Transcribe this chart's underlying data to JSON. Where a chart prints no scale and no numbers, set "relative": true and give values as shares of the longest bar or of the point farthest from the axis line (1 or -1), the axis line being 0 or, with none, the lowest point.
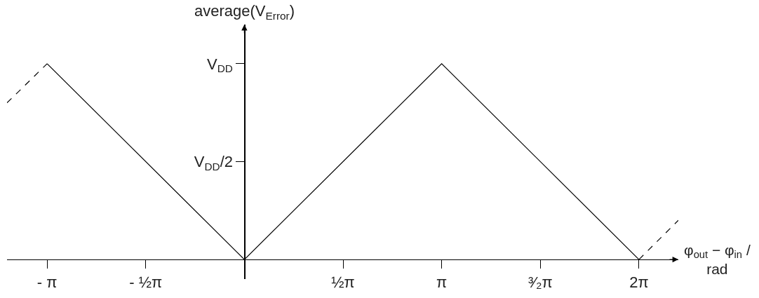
{
  "chart_data": {
    "type": "line",
    "relative": true,
    "xlabel": "φ$_{out}$ − φ$_{in}$ / rad",
    "ylabel": "average(V$_{Error}$)",
    "series": [
      {
        "color": "#000000",
        "line_style": "solid",
        "x": [
          -3.1416,
          0,
          3.1416,
          6.2832
        ],
        "values": [
          1,
          0,
          1,
          0
        ]
      },
      {
        "color": "#000000",
        "line_style": "dashed",
        "x": [
          -3.78,
          -3.1416
        ],
        "values": [
          0.8,
          1
        ]
      },
      {
        "color": "#000000",
        "line_style": "dashed",
        "x": [
          6.2832,
          6.91
        ],
        "values": [
          0,
          0.2
        ]
      }
    ],
    "xlim": [
      -3.78,
      6.91
    ],
    "xticks": [
      {
        "value": -3.1416,
        "label": "- π"
      },
      {
        "value": -1.5708,
        "label": "- ½π"
      },
      {
        "value": 1.5708,
        "label": "½π"
      },
      {
        "value": 3.1416,
        "label": "π"
      },
      {
        "value": 4.7124,
        "label": "³⁄₂π"
      },
      {
        "value": 6.2832,
        "label": "2π"
      }
    ],
    "annotations": [
      "V$_{DD}$/2",
      "V$_{DD}$"
    ],
    "grid": false,
    "marker": "none"
  }
}
